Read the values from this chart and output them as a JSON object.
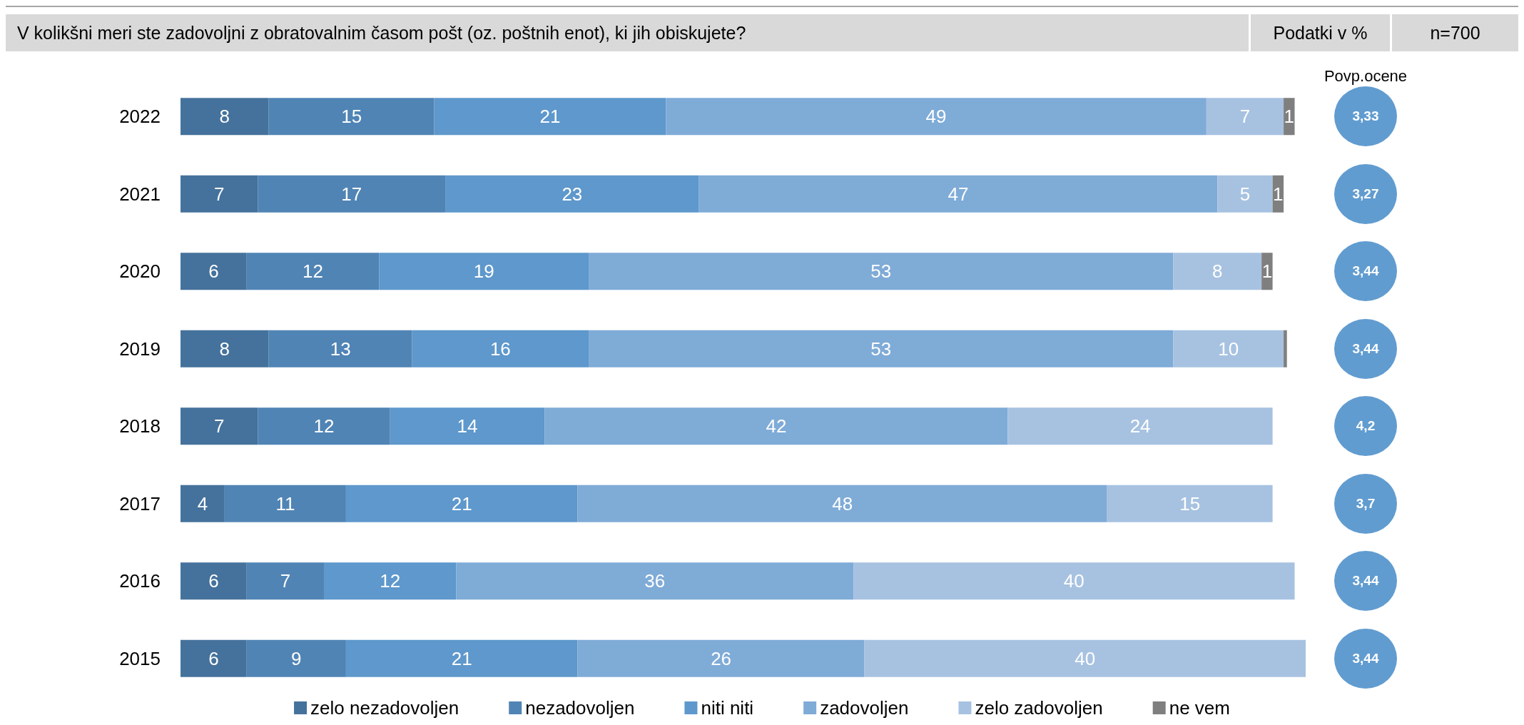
{
  "chart_data": {
    "type": "bar",
    "orientation": "horizontal",
    "stacked": true,
    "title": "V kolikšni meri ste zadovoljni z obratovalnim časom pošt (oz. poštnih enot), ki jih obiskujete?",
    "categories": [
      "2022",
      "2021",
      "2020",
      "2019",
      "2018",
      "2017",
      "2016",
      "2015"
    ],
    "series": [
      {
        "name": "zelo nezadovoljen",
        "color": "#45729c",
        "values": [
          8,
          7,
          6,
          8,
          7,
          4,
          6,
          6
        ],
        "value_labels": [
          "8",
          "7",
          "6",
          "8",
          "7",
          "4",
          "6",
          "6"
        ]
      },
      {
        "name": "nezadovoljen",
        "color": "#5084b5",
        "values": [
          15,
          17,
          12,
          13,
          12,
          11,
          7,
          9
        ],
        "value_labels": [
          "15",
          "17",
          "12",
          "13",
          "12",
          "11",
          "7",
          "9"
        ]
      },
      {
        "name": "niti niti",
        "color": "#5e98cc",
        "values": [
          21,
          23,
          19,
          16,
          14,
          21,
          12,
          21
        ],
        "value_labels": [
          "21",
          "23",
          "19",
          "16",
          "14",
          "21",
          "12",
          "21"
        ]
      },
      {
        "name": "zadovoljen",
        "color": "#7fabd7",
        "values": [
          49,
          47,
          53,
          53,
          42,
          48,
          36,
          26
        ],
        "value_labels": [
          "49",
          "47",
          "53",
          "53",
          "42",
          "48",
          "36",
          "26"
        ]
      },
      {
        "name": "zelo zadovoljen",
        "color": "#a7c2e1",
        "values": [
          7,
          5,
          8,
          10,
          24,
          15,
          40,
          40
        ],
        "value_labels": [
          "7",
          "5",
          "8",
          "10",
          "24",
          "15",
          "40",
          "40"
        ]
      },
      {
        "name": "ne vem",
        "color": "#7f7f7f",
        "values": [
          1,
          1,
          1,
          0.3,
          null,
          null,
          null,
          null
        ],
        "value_labels": [
          "1",
          "1",
          "1",
          null,
          null,
          null,
          null,
          null
        ]
      }
    ],
    "legend": "bottom",
    "annotations": [
      "Podatki v %",
      "n=700",
      "Povp.ocene",
      "3,33",
      "3,27",
      "3,44",
      "3,44",
      "4,2",
      "3,7",
      "3,44",
      "3,44"
    ]
  }
}
